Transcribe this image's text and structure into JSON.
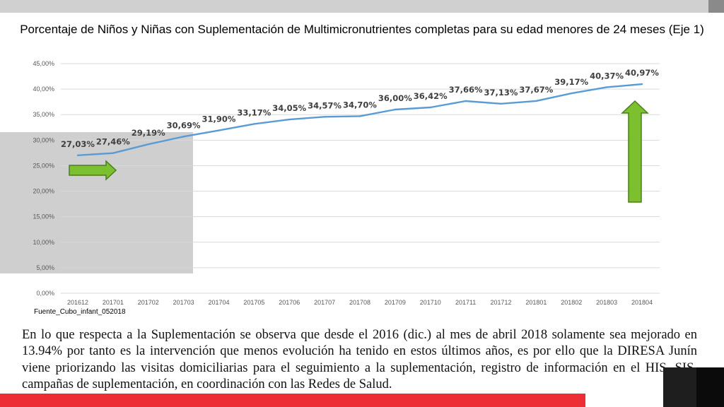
{
  "chart_data": {
    "type": "line",
    "title": "Porcentaje de Niños y Niñas con Suplementación de Multimicronutrientes completas para su edad menores de 24 meses (Eje 1)",
    "categories": [
      "201612",
      "201701",
      "201702",
      "201703",
      "201704",
      "201705",
      "201706",
      "201707",
      "201708",
      "201709",
      "201710",
      "201711",
      "201712",
      "201801",
      "201802",
      "201803",
      "201804"
    ],
    "series": [
      {
        "values": [
          27.03,
          27.46,
          29.19,
          30.69,
          31.9,
          33.17,
          34.05,
          34.57,
          34.7,
          36.0,
          36.42,
          37.66,
          37.13,
          37.67,
          39.17,
          40.37,
          40.97
        ],
        "labels": [
          "27,03%",
          "27,46%",
          "29,19%",
          "30,69%",
          "31,90%",
          "33,17%",
          "34,05%",
          "34,57%",
          "34,70%",
          "36,00%",
          "36,42%",
          "37,66%",
          "37,13%",
          "37,67%",
          "39,17%",
          "40,37%",
          "40,97%"
        ]
      }
    ],
    "y_ticks": [
      "0,00%",
      "5,00%",
      "10,00%",
      "15,00%",
      "20,00%",
      "25,00%",
      "30,00%",
      "35,00%",
      "40,00%",
      "45,00%"
    ],
    "ylim": [
      0,
      45
    ],
    "grid": true,
    "legend": "none",
    "line_color": "#5b9bd5"
  },
  "source_note": "Fuente_Cubo_infant_052018",
  "body_text": "En lo que respecta a la Suplementación se observa que desde el 2016 (dic.) al mes de abril 2018 solamente sea mejorado en 13.94% por tanto es la intervención que menos evolución ha tenido en estos últimos años, es por ello que la DIRESA Junín viene priorizando las visitas domiciliarias para el seguimiento a la suplementación, registro de información en el HIS, SIS, campañas de suplementación, en coordinación con las Redes de Salud.",
  "annotations": {
    "arrow_color": "#7cbf2f",
    "arrow_outline": "#4a7f1a"
  }
}
